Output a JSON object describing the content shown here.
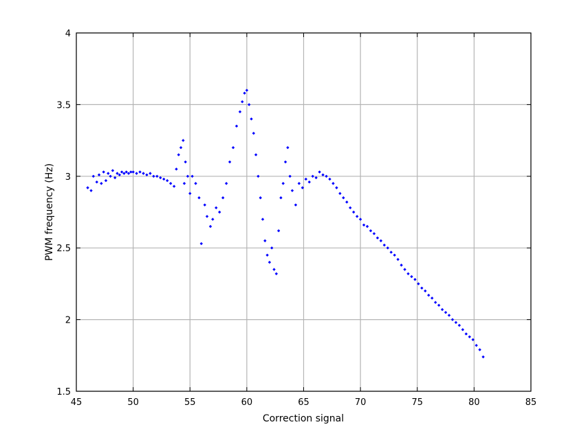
{
  "chart_data": {
    "type": "scatter",
    "title": "",
    "xlabel": "Correction signal",
    "ylabel": "PWM frequency (Hz)",
    "xlim": [
      45,
      85
    ],
    "ylim": [
      1.5,
      4
    ],
    "xticks": [
      "45",
      "50",
      "55",
      "60",
      "65",
      "70",
      "75",
      "80",
      "85"
    ],
    "yticks": [
      "1.5",
      "2",
      "2.5",
      "3",
      "3.5",
      "4"
    ],
    "grid": true,
    "marker": "diamond",
    "color": "#0000ff",
    "series": [
      {
        "x": [
          46.0,
          46.3,
          46.5,
          46.8,
          47.0,
          47.2,
          47.4,
          47.6,
          47.8,
          48.0,
          48.2,
          48.4,
          48.6,
          48.8,
          49.0,
          49.2,
          49.4,
          49.6,
          49.8,
          50.0,
          50.3,
          50.6,
          50.9,
          51.2,
          51.5,
          51.8,
          52.1,
          52.4,
          52.7,
          53.0,
          53.3,
          53.6,
          53.8,
          54.0,
          54.2,
          54.4,
          54.5,
          54.6,
          54.8,
          55.0,
          55.2,
          55.5,
          55.8,
          56.0,
          56.3,
          56.5,
          56.8,
          57.0,
          57.3,
          57.6,
          57.9,
          58.2,
          58.5,
          58.8,
          59.1,
          59.4,
          59.6,
          59.8,
          60.0,
          60.2,
          60.4,
          60.6,
          60.8,
          61.0,
          61.2,
          61.4,
          61.6,
          61.8,
          62.0,
          62.2,
          62.4,
          62.6,
          62.8,
          63.0,
          63.2,
          63.4,
          63.6,
          63.8,
          64.0,
          64.3,
          64.6,
          64.9,
          65.2,
          65.5,
          65.8,
          66.1,
          66.4,
          66.7,
          67.0,
          67.3,
          67.6,
          67.9,
          68.2,
          68.5,
          68.8,
          69.1,
          69.4,
          69.7,
          70.0,
          70.3,
          70.6,
          70.9,
          71.2,
          71.5,
          71.8,
          72.1,
          72.4,
          72.7,
          73.0,
          73.3,
          73.6,
          73.9,
          74.2,
          74.5,
          74.8,
          75.1,
          75.4,
          75.7,
          76.0,
          76.3,
          76.6,
          76.9,
          77.2,
          77.5,
          77.8,
          78.1,
          78.4,
          78.7,
          79.0,
          79.3,
          79.6,
          79.9,
          80.2,
          80.5,
          80.8
        ],
        "y": [
          2.92,
          2.9,
          3.0,
          2.96,
          3.01,
          2.95,
          3.03,
          2.97,
          3.02,
          3.0,
          3.04,
          2.99,
          3.02,
          3.01,
          3.03,
          3.02,
          3.03,
          3.02,
          3.03,
          3.03,
          3.02,
          3.03,
          3.02,
          3.01,
          3.02,
          3.0,
          3.0,
          2.99,
          2.98,
          2.97,
          2.95,
          2.93,
          3.05,
          3.15,
          3.2,
          3.25,
          2.95,
          3.1,
          3.0,
          2.88,
          3.0,
          2.95,
          2.85,
          2.53,
          2.8,
          2.72,
          2.65,
          2.7,
          2.78,
          2.75,
          2.85,
          2.95,
          3.1,
          3.2,
          3.35,
          3.45,
          3.52,
          3.58,
          3.6,
          3.5,
          3.4,
          3.3,
          3.15,
          3.0,
          2.85,
          2.7,
          2.55,
          2.45,
          2.4,
          2.5,
          2.35,
          2.32,
          2.62,
          2.85,
          2.95,
          3.1,
          3.2,
          3.0,
          2.9,
          2.8,
          2.95,
          2.92,
          2.98,
          2.96,
          3.0,
          2.99,
          3.03,
          3.01,
          3.0,
          2.98,
          2.95,
          2.92,
          2.88,
          2.85,
          2.82,
          2.78,
          2.75,
          2.72,
          2.7,
          2.66,
          2.65,
          2.62,
          2.6,
          2.57,
          2.55,
          2.52,
          2.5,
          2.47,
          2.45,
          2.42,
          2.38,
          2.35,
          2.32,
          2.3,
          2.28,
          2.25,
          2.22,
          2.2,
          2.17,
          2.15,
          2.12,
          2.1,
          2.07,
          2.05,
          2.03,
          2.0,
          1.98,
          1.96,
          1.93,
          1.9,
          1.88,
          1.86,
          1.82,
          1.79,
          1.74
        ]
      }
    ]
  }
}
